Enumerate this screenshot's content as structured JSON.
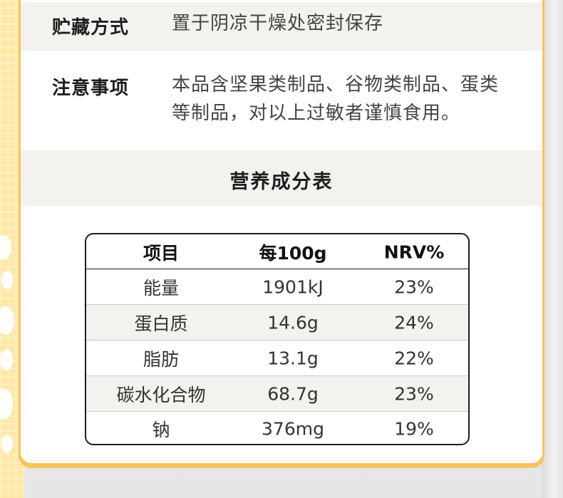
{
  "storage": {
    "label": "贮藏方式",
    "value": "置于阴凉干燥处密封保存"
  },
  "notes": {
    "label": "注意事项",
    "line1": "本品含坚果类制品、谷物类制品、蛋类",
    "line2": "等制品，对以上过敏者谨慎食用。"
  },
  "nutrition": {
    "title": "营养成分表",
    "headers": [
      "项目",
      "每100g",
      "NRV%"
    ],
    "rows": [
      {
        "item": "能量",
        "per100g": "1901kJ",
        "nrv": "23%"
      },
      {
        "item": "蛋白质",
        "per100g": "14.6g",
        "nrv": "24%"
      },
      {
        "item": "脂肪",
        "per100g": "13.1g",
        "nrv": "22%"
      },
      {
        "item": "碳水化合物",
        "per100g": "68.7g",
        "nrv": "23%"
      },
      {
        "item": "钠",
        "per100g": "376mg",
        "nrv": "19%"
      }
    ]
  },
  "colors": {
    "accent": "#f9c35b",
    "strip": "#ffe7a6",
    "row_shade": "#f4f2ee"
  }
}
